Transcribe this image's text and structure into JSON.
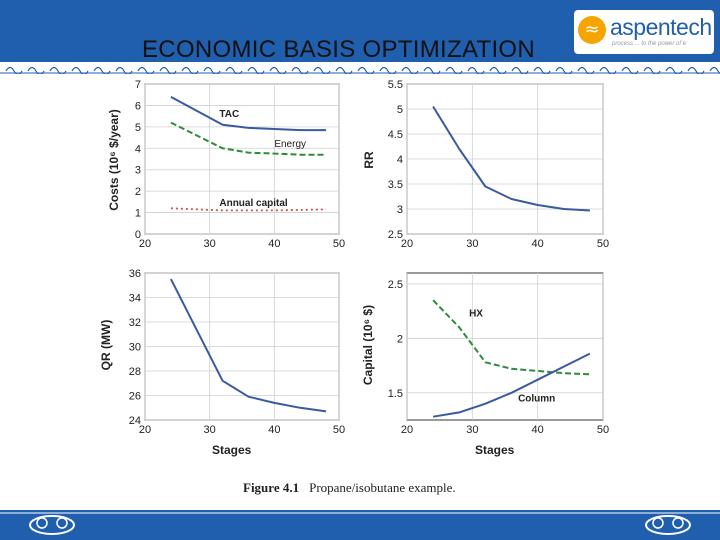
{
  "slide": {
    "title": "ECONOMIC BASIS OPTIMIZATION",
    "brand": "aspentech",
    "brand_tagline": "process ... to the power of e",
    "caption_label": "Figure 4.1",
    "caption_text": "Propane/isobutane example.",
    "colors": {
      "header": "#1f5fae",
      "accent": "#f5a400",
      "solid_line": "#3a5aa0",
      "dashed_line": "#2e8b3e",
      "dotted_line": "#d0504f"
    }
  },
  "chart_data": [
    {
      "id": "costs",
      "type": "line",
      "xlabel": "",
      "ylabel": "Costs (10⁶ $/year)",
      "xlim": [
        20,
        50
      ],
      "ylim": [
        0,
        7
      ],
      "xticks": [
        20,
        30,
        40,
        50
      ],
      "yticks": [
        0,
        1,
        2,
        3,
        4,
        5,
        6,
        7
      ],
      "grid": true,
      "series": [
        {
          "name": "TAC",
          "style": "solid",
          "color": "#3a5aa0",
          "x": [
            24,
            32,
            36,
            40,
            44,
            48
          ],
          "y": [
            6.4,
            5.1,
            4.95,
            4.9,
            4.85,
            4.85
          ]
        },
        {
          "name": "Energy",
          "style": "dashed",
          "color": "#2e8b3e",
          "x": [
            24,
            32,
            36,
            40,
            44,
            48
          ],
          "y": [
            5.2,
            4.0,
            3.8,
            3.75,
            3.7,
            3.7
          ]
        },
        {
          "name": "Annual capital",
          "style": "dotted",
          "color": "#d0504f",
          "x": [
            24,
            32,
            40,
            48
          ],
          "y": [
            1.2,
            1.1,
            1.1,
            1.15
          ]
        }
      ],
      "annotations": [
        {
          "text": "TAC",
          "x": 31.5,
          "y": 5.45,
          "bold": true
        },
        {
          "text": "Energy",
          "x": 40,
          "y": 4.05,
          "bold": false
        },
        {
          "text": "Annual capital",
          "x": 31.5,
          "y": 1.3,
          "bold": true
        }
      ]
    },
    {
      "id": "rr",
      "type": "line",
      "xlabel": "",
      "ylabel": "RR",
      "xlim": [
        20,
        50
      ],
      "ylim": [
        2.5,
        5.5
      ],
      "xticks": [
        20,
        30,
        40,
        50
      ],
      "yticks": [
        2.5,
        3,
        3.5,
        4,
        4.5,
        5,
        5.5
      ],
      "grid": true,
      "series": [
        {
          "name": "RR",
          "style": "solid",
          "color": "#3a5aa0",
          "x": [
            24,
            28,
            32,
            36,
            40,
            44,
            48
          ],
          "y": [
            5.05,
            4.2,
            3.45,
            3.2,
            3.08,
            3.0,
            2.97
          ]
        }
      ],
      "annotations": []
    },
    {
      "id": "qr",
      "type": "line",
      "xlabel": "Stages",
      "ylabel": "QR (MW)",
      "xlim": [
        20,
        50
      ],
      "ylim": [
        24,
        36
      ],
      "xticks": [
        20,
        30,
        40,
        50
      ],
      "yticks": [
        24,
        26,
        28,
        30,
        32,
        34,
        36
      ],
      "grid": true,
      "series": [
        {
          "name": "QR",
          "style": "solid",
          "color": "#3a5aa0",
          "x": [
            24,
            32,
            36,
            40,
            44,
            48
          ],
          "y": [
            35.5,
            27.2,
            25.9,
            25.4,
            25.0,
            24.7
          ]
        }
      ],
      "annotations": []
    },
    {
      "id": "capital",
      "type": "line",
      "xlabel": "Stages",
      "ylabel": "Capital (10⁶ $)",
      "xlim": [
        20,
        50
      ],
      "ylim": [
        1.25,
        2.6
      ],
      "xticks": [
        20,
        30,
        40,
        50
      ],
      "yticks": [
        1.5,
        2,
        2.5
      ],
      "grid": true,
      "series": [
        {
          "name": "HX",
          "style": "dashed",
          "color": "#2e8b3e",
          "x": [
            24,
            28,
            32,
            36,
            40,
            44,
            48
          ],
          "y": [
            2.35,
            2.1,
            1.78,
            1.72,
            1.7,
            1.68,
            1.67
          ]
        },
        {
          "name": "Column",
          "style": "solid",
          "color": "#3a5aa0",
          "x": [
            24,
            28,
            32,
            36,
            40,
            44,
            48
          ],
          "y": [
            1.28,
            1.32,
            1.4,
            1.5,
            1.62,
            1.74,
            1.86
          ]
        }
      ],
      "annotations": [
        {
          "text": "HX",
          "x": 29.5,
          "y": 2.2,
          "bold": true
        },
        {
          "text": "Column",
          "x": 37,
          "y": 1.42,
          "bold": true
        }
      ]
    }
  ]
}
